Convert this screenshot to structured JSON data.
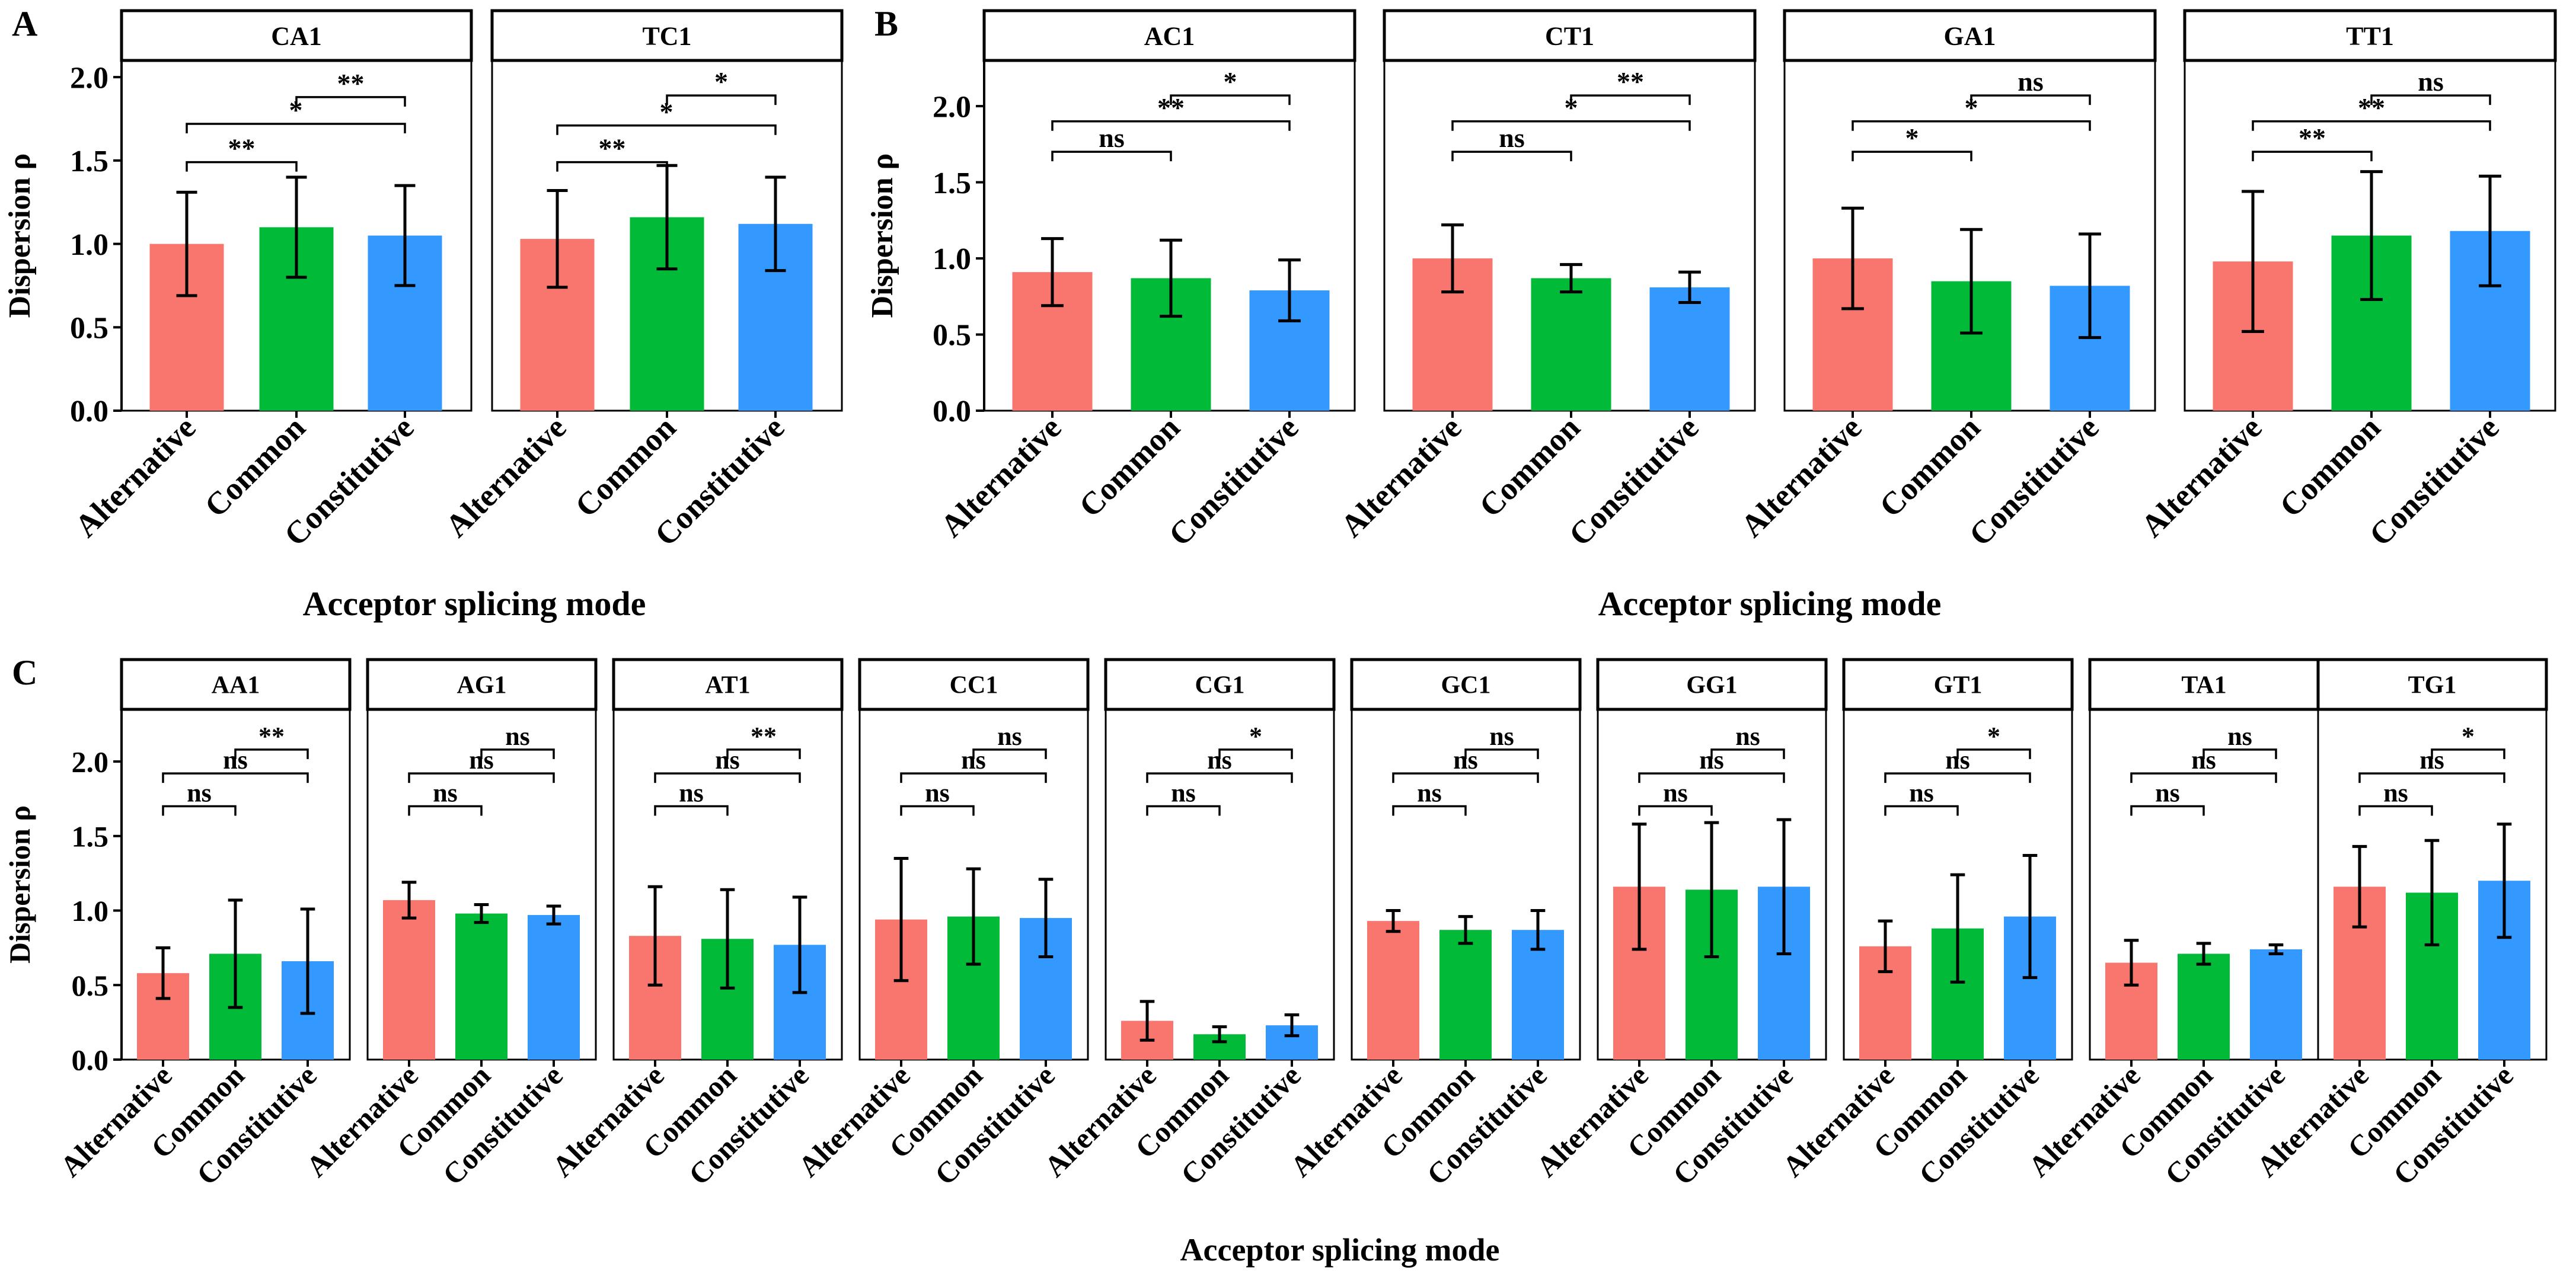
{
  "figure": {
    "ylabel": "Dispersion ρ",
    "categories": [
      "Alternative",
      "Common",
      "Constitutive"
    ],
    "colors": {
      "Alternative": "#F8766D",
      "Common": "#00BA38",
      "Constitutive": "#3399FF"
    }
  },
  "chart_data": [
    {
      "type": "bar",
      "label": "A",
      "xlabel": "Acceptor splicing mode",
      "ylabel": "Dispersion ρ",
      "ylim": [
        0,
        2.1
      ],
      "yticks": [
        0.0,
        0.5,
        1.0,
        1.5,
        2.0
      ],
      "yticklabels": [
        "0.0",
        "0.5",
        "1.0",
        "1.5",
        "2.0"
      ],
      "categories": [
        "Alternative",
        "Common",
        "Constitutive"
      ],
      "facets": [
        {
          "title": "CA1",
          "values": [
            1.0,
            1.1,
            1.05
          ],
          "errors": [
            0.31,
            0.3,
            0.3
          ],
          "comparisons": [
            {
              "groups": [
                1,
                2
              ],
              "label": "**",
              "y": 1.88
            },
            {
              "groups": [
                0,
                2
              ],
              "label": "*",
              "y": 1.72
            },
            {
              "groups": [
                0,
                1
              ],
              "label": "**",
              "y": 1.49
            }
          ]
        },
        {
          "title": "TC1",
          "values": [
            1.03,
            1.16,
            1.12
          ],
          "errors": [
            0.29,
            0.31,
            0.28
          ],
          "comparisons": [
            {
              "groups": [
                1,
                2
              ],
              "label": "*",
              "y": 1.89
            },
            {
              "groups": [
                0,
                2
              ],
              "label": "*",
              "y": 1.71
            },
            {
              "groups": [
                0,
                1
              ],
              "label": "**",
              "y": 1.49
            }
          ]
        }
      ]
    },
    {
      "type": "bar",
      "label": "B",
      "xlabel": "Acceptor splicing mode",
      "ylabel": "Dispersion ρ",
      "ylim": [
        0,
        2.3
      ],
      "yticks": [
        0.0,
        0.5,
        1.0,
        1.5,
        2.0
      ],
      "yticklabels": [
        "0.0",
        "0.5",
        "1.0",
        "1.5",
        "2.0"
      ],
      "categories": [
        "Alternative",
        "Common",
        "Constitutive"
      ],
      "facets": [
        {
          "title": "AC1",
          "values": [
            0.91,
            0.87,
            0.79
          ],
          "errors": [
            0.22,
            0.25,
            0.2
          ],
          "comparisons": [
            {
              "groups": [
                1,
                2
              ],
              "label": "*",
              "y": 2.07
            },
            {
              "groups": [
                0,
                2
              ],
              "label": "**",
              "y": 1.9
            },
            {
              "groups": [
                0,
                1
              ],
              "label": "ns",
              "y": 1.7
            }
          ]
        },
        {
          "title": "CT1",
          "values": [
            1.0,
            0.87,
            0.81
          ],
          "errors": [
            0.22,
            0.09,
            0.1
          ],
          "comparisons": [
            {
              "groups": [
                1,
                2
              ],
              "label": "**",
              "y": 2.07
            },
            {
              "groups": [
                0,
                2
              ],
              "label": "*",
              "y": 1.9
            },
            {
              "groups": [
                0,
                1
              ],
              "label": "ns",
              "y": 1.7
            }
          ]
        },
        {
          "title": "GA1",
          "values": [
            1.0,
            0.85,
            0.82
          ],
          "errors": [
            0.33,
            0.34,
            0.34
          ],
          "comparisons": [
            {
              "groups": [
                1,
                2
              ],
              "label": "ns",
              "y": 2.07
            },
            {
              "groups": [
                0,
                2
              ],
              "label": "*",
              "y": 1.9
            },
            {
              "groups": [
                0,
                1
              ],
              "label": "*",
              "y": 1.7
            }
          ]
        },
        {
          "title": "TT1",
          "values": [
            0.98,
            1.15,
            1.18
          ],
          "errors": [
            0.46,
            0.42,
            0.36
          ],
          "comparisons": [
            {
              "groups": [
                1,
                2
              ],
              "label": "ns",
              "y": 2.07
            },
            {
              "groups": [
                0,
                2
              ],
              "label": "**",
              "y": 1.9
            },
            {
              "groups": [
                0,
                1
              ],
              "label": "**",
              "y": 1.7
            }
          ]
        }
      ]
    },
    {
      "type": "bar",
      "label": "C",
      "xlabel": "Acceptor splicing mode",
      "ylabel": "Dispersion ρ",
      "ylim": [
        0,
        2.35
      ],
      "yticks": [
        0.0,
        0.5,
        1.0,
        1.5,
        2.0
      ],
      "yticklabels": [
        "0.0",
        "0.5",
        "1.0",
        "1.5",
        "2.0"
      ],
      "categories": [
        "Alternative",
        "Common",
        "Constitutive"
      ],
      "facets": [
        {
          "title": "AA1",
          "values": [
            0.58,
            0.71,
            0.66
          ],
          "errors": [
            0.17,
            0.36,
            0.35
          ],
          "comparisons": [
            {
              "groups": [
                1,
                2
              ],
              "label": "**",
              "y": 2.08
            },
            {
              "groups": [
                0,
                2
              ],
              "label": "ns",
              "y": 1.92
            },
            {
              "groups": [
                0,
                1
              ],
              "label": "ns",
              "y": 1.7
            }
          ]
        },
        {
          "title": "AG1",
          "values": [
            1.07,
            0.98,
            0.97
          ],
          "errors": [
            0.12,
            0.06,
            0.06
          ],
          "comparisons": [
            {
              "groups": [
                1,
                2
              ],
              "label": "ns",
              "y": 2.08
            },
            {
              "groups": [
                0,
                2
              ],
              "label": "ns",
              "y": 1.92
            },
            {
              "groups": [
                0,
                1
              ],
              "label": "ns",
              "y": 1.7
            }
          ]
        },
        {
          "title": "AT1",
          "values": [
            0.83,
            0.81,
            0.77
          ],
          "errors": [
            0.33,
            0.33,
            0.32
          ],
          "comparisons": [
            {
              "groups": [
                1,
                2
              ],
              "label": "**",
              "y": 2.08
            },
            {
              "groups": [
                0,
                2
              ],
              "label": "ns",
              "y": 1.92
            },
            {
              "groups": [
                0,
                1
              ],
              "label": "ns",
              "y": 1.7
            }
          ]
        },
        {
          "title": "CC1",
          "values": [
            0.94,
            0.96,
            0.95
          ],
          "errors": [
            0.41,
            0.32,
            0.26
          ],
          "comparisons": [
            {
              "groups": [
                1,
                2
              ],
              "label": "ns",
              "y": 2.08
            },
            {
              "groups": [
                0,
                2
              ],
              "label": "ns",
              "y": 1.92
            },
            {
              "groups": [
                0,
                1
              ],
              "label": "ns",
              "y": 1.7
            }
          ]
        },
        {
          "title": "CG1",
          "values": [
            0.26,
            0.17,
            0.23
          ],
          "errors": [
            0.13,
            0.05,
            0.07
          ],
          "comparisons": [
            {
              "groups": [
                1,
                2
              ],
              "label": "*",
              "y": 2.08
            },
            {
              "groups": [
                0,
                2
              ],
              "label": "ns",
              "y": 1.92
            },
            {
              "groups": [
                0,
                1
              ],
              "label": "ns",
              "y": 1.7
            }
          ]
        },
        {
          "title": "GC1",
          "values": [
            0.93,
            0.87,
            0.87
          ],
          "errors": [
            0.07,
            0.09,
            0.13
          ],
          "comparisons": [
            {
              "groups": [
                1,
                2
              ],
              "label": "ns",
              "y": 2.08
            },
            {
              "groups": [
                0,
                2
              ],
              "label": "ns",
              "y": 1.92
            },
            {
              "groups": [
                0,
                1
              ],
              "label": "ns",
              "y": 1.7
            }
          ]
        },
        {
          "title": "GG1",
          "values": [
            1.16,
            1.14,
            1.16
          ],
          "errors": [
            0.42,
            0.45,
            0.45
          ],
          "comparisons": [
            {
              "groups": [
                1,
                2
              ],
              "label": "ns",
              "y": 2.08
            },
            {
              "groups": [
                0,
                2
              ],
              "label": "ns",
              "y": 1.92
            },
            {
              "groups": [
                0,
                1
              ],
              "label": "ns",
              "y": 1.7
            }
          ]
        },
        {
          "title": "GT1",
          "values": [
            0.76,
            0.88,
            0.96
          ],
          "errors": [
            0.17,
            0.36,
            0.41
          ],
          "comparisons": [
            {
              "groups": [
                1,
                2
              ],
              "label": "*",
              "y": 2.08
            },
            {
              "groups": [
                0,
                2
              ],
              "label": "ns",
              "y": 1.92
            },
            {
              "groups": [
                0,
                1
              ],
              "label": "ns",
              "y": 1.7
            }
          ]
        },
        {
          "title": "TA1",
          "values": [
            0.65,
            0.71,
            0.74
          ],
          "errors": [
            0.15,
            0.07,
            0.03
          ],
          "comparisons": [
            {
              "groups": [
                1,
                2
              ],
              "label": "ns",
              "y": 2.08
            },
            {
              "groups": [
                0,
                2
              ],
              "label": "ns",
              "y": 1.92
            },
            {
              "groups": [
                0,
                1
              ],
              "label": "ns",
              "y": 1.7
            }
          ]
        },
        {
          "title": "TG1",
          "values": [
            1.16,
            1.12,
            1.2
          ],
          "errors": [
            0.27,
            0.35,
            0.38
          ],
          "comparisons": [
            {
              "groups": [
                1,
                2
              ],
              "label": "*",
              "y": 2.08
            },
            {
              "groups": [
                0,
                2
              ],
              "label": "ns",
              "y": 1.92
            },
            {
              "groups": [
                0,
                1
              ],
              "label": "ns",
              "y": 1.7
            }
          ]
        }
      ]
    }
  ]
}
